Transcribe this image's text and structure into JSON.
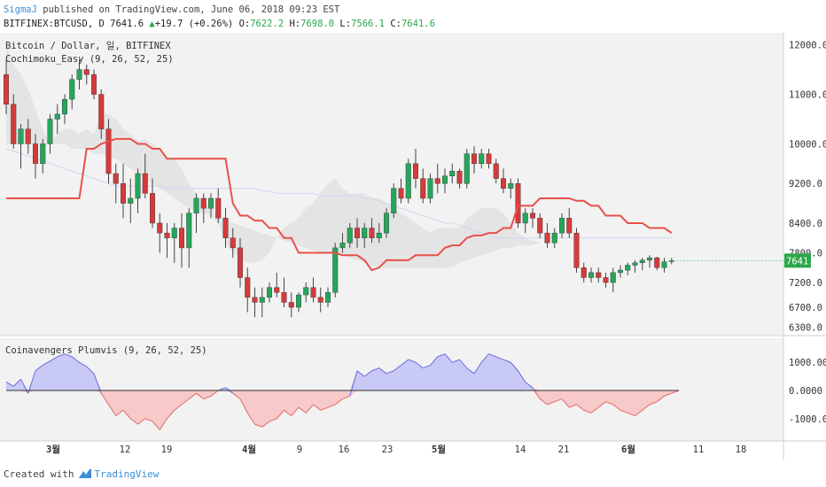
{
  "header": {
    "author": "SigmaJ",
    "published": "published on TradingView.com, June 06, 2018 09:23 EST",
    "symbol": "BITFINEX:BTCUSD, D",
    "last": "7641.6",
    "change": "+19.7 (+0.26%)",
    "o_label": "O:",
    "o": "7622.2",
    "h_label": "H:",
    "h": "7698.0",
    "l_label": "L:",
    "l": "7566.1",
    "c_label": "C:",
    "c": "7641.6"
  },
  "legend": {
    "line1": "Bitcoin / Dollar, 일, BITFINEX",
    "line2": "Cochimoku_Easy (9, 26, 52, 25)",
    "osc": "Coinavengers Plumvis (9, 26, 52, 25)"
  },
  "footer": {
    "created": "Created with",
    "brand": "TradingView"
  },
  "colors": {
    "up": "#26a65b",
    "down": "#d63a3a",
    "kijun": "#e8504a",
    "cloud": "#e4e4e4",
    "span": "#c9d6f0",
    "osc_pos": "#c9c9f5",
    "osc_neg": "#f7c9c9",
    "osc_line_pos": "#6b6be0",
    "osc_line_neg": "#e06b6b",
    "price_tag": "#2aa84a"
  },
  "chart_data": [
    {
      "type": "candlestick",
      "title": "Bitcoin / Dollar, 일, BITFINEX",
      "ylim": [
        6200,
        12100
      ],
      "y_ticks": [
        "12000.0",
        "11000.0",
        "10000.0",
        "9200.0",
        "8400.0",
        "7800.0",
        "7200.0",
        "6700.0",
        "6300.0"
      ],
      "y_tick_values": [
        12000,
        11000,
        10000,
        9200,
        8400,
        7800,
        7200,
        6700,
        6300
      ],
      "last_price": "7641.6",
      "x_tick_labels": [
        "3월",
        "12",
        "19",
        "4월",
        "9",
        "16",
        "23",
        "5월",
        "14",
        "21",
        "6월",
        "11",
        "18"
      ],
      "candles": [
        [
          11400,
          11700,
          10600,
          10800
        ],
        [
          10800,
          11000,
          9900,
          10000
        ],
        [
          10000,
          10400,
          9500,
          10300
        ],
        [
          10300,
          10500,
          9800,
          10000
        ],
        [
          10000,
          10200,
          9300,
          9600
        ],
        [
          9600,
          10100,
          9400,
          10000
        ],
        [
          10000,
          10600,
          9800,
          10500
        ],
        [
          10500,
          10800,
          10200,
          10600
        ],
        [
          10600,
          11000,
          10400,
          10900
        ],
        [
          10900,
          11400,
          10700,
          11300
        ],
        [
          11300,
          11700,
          11100,
          11500
        ],
        [
          11500,
          11600,
          11200,
          11400
        ],
        [
          11400,
          11500,
          10900,
          11000
        ],
        [
          11000,
          11100,
          10100,
          10300
        ],
        [
          10300,
          10500,
          9200,
          9400
        ],
        [
          9400,
          9600,
          8800,
          9200
        ],
        [
          9200,
          9600,
          8500,
          8800
        ],
        [
          8800,
          9300,
          8400,
          8900
        ],
        [
          8900,
          9500,
          8600,
          9400
        ],
        [
          9400,
          9800,
          8900,
          9000
        ],
        [
          9000,
          9300,
          8300,
          8400
        ],
        [
          8400,
          8600,
          7800,
          8200
        ],
        [
          8200,
          8400,
          7700,
          8100
        ],
        [
          8100,
          8400,
          7600,
          8300
        ],
        [
          8300,
          8600,
          7500,
          7900
        ],
        [
          7900,
          8700,
          7500,
          8600
        ],
        [
          8600,
          9000,
          8200,
          8900
        ],
        [
          8900,
          9000,
          8400,
          8700
        ],
        [
          8700,
          9000,
          8500,
          8900
        ],
        [
          8900,
          9100,
          8400,
          8500
        ],
        [
          8500,
          8700,
          7900,
          8100
        ],
        [
          8100,
          8300,
          7700,
          7900
        ],
        [
          7900,
          8100,
          7100,
          7300
        ],
        [
          7300,
          7500,
          6600,
          6900
        ],
        [
          6900,
          7100,
          6500,
          6800
        ],
        [
          6800,
          7100,
          6500,
          6900
        ],
        [
          6900,
          7200,
          6800,
          7100
        ],
        [
          7100,
          7400,
          6900,
          7000
        ],
        [
          7000,
          7300,
          6700,
          6800
        ],
        [
          6800,
          7000,
          6500,
          6700
        ],
        [
          6700,
          7000,
          6600,
          6950
        ],
        [
          6950,
          7200,
          6800,
          7100
        ],
        [
          7100,
          7300,
          6800,
          6900
        ],
        [
          6900,
          7100,
          6600,
          6800
        ],
        [
          6800,
          7100,
          6700,
          7000
        ],
        [
          7000,
          8000,
          6900,
          7900
        ],
        [
          7900,
          8200,
          7800,
          8000
        ],
        [
          8000,
          8400,
          7900,
          8300
        ],
        [
          8300,
          8500,
          7900,
          8100
        ],
        [
          8100,
          8400,
          7900,
          8300
        ],
        [
          8300,
          8500,
          8000,
          8100
        ],
        [
          8100,
          8400,
          8000,
          8200
        ],
        [
          8200,
          8700,
          8100,
          8600
        ],
        [
          8600,
          9200,
          8500,
          9100
        ],
        [
          9100,
          9300,
          8800,
          8900
        ],
        [
          8900,
          9700,
          8800,
          9600
        ],
        [
          9600,
          9900,
          9100,
          9300
        ],
        [
          9300,
          9500,
          8800,
          8900
        ],
        [
          8900,
          9400,
          8800,
          9300
        ],
        [
          9300,
          9600,
          9000,
          9200
        ],
        [
          9200,
          9500,
          9000,
          9350
        ],
        [
          9350,
          9600,
          9200,
          9450
        ],
        [
          9450,
          9500,
          9100,
          9200
        ],
        [
          9200,
          9900,
          9100,
          9800
        ],
        [
          9800,
          9950,
          9400,
          9600
        ],
        [
          9600,
          9900,
          9500,
          9800
        ],
        [
          9800,
          9900,
          9500,
          9600
        ],
        [
          9600,
          9700,
          9200,
          9300
        ],
        [
          9300,
          9500,
          9000,
          9100
        ],
        [
          9100,
          9300,
          8900,
          9200
        ],
        [
          9200,
          9300,
          8300,
          8400
        ],
        [
          8400,
          8700,
          8200,
          8600
        ],
        [
          8600,
          8700,
          8300,
          8500
        ],
        [
          8500,
          8600,
          8100,
          8200
        ],
        [
          8200,
          8400,
          7900,
          8000
        ],
        [
          8000,
          8300,
          7900,
          8200
        ],
        [
          8200,
          8600,
          8100,
          8500
        ],
        [
          8500,
          8700,
          8100,
          8200
        ],
        [
          8200,
          8300,
          7400,
          7500
        ],
        [
          7500,
          7600,
          7200,
          7300
        ],
        [
          7300,
          7500,
          7200,
          7400
        ],
        [
          7400,
          7500,
          7200,
          7300
        ],
        [
          7300,
          7400,
          7100,
          7200
        ],
        [
          7200,
          7500,
          7000,
          7400
        ],
        [
          7400,
          7550,
          7300,
          7450
        ],
        [
          7450,
          7600,
          7350,
          7550
        ],
        [
          7550,
          7650,
          7400,
          7600
        ],
        [
          7600,
          7700,
          7450,
          7650
        ],
        [
          7650,
          7750,
          7500,
          7700
        ],
        [
          7700,
          7720,
          7450,
          7500
        ],
        [
          7500,
          7700,
          7400,
          7620
        ],
        [
          7622,
          7698,
          7566,
          7642
        ]
      ],
      "kijun": [
        8900,
        8900,
        8900,
        8900,
        8900,
        8900,
        8900,
        8900,
        8900,
        8900,
        8900,
        9900,
        9900,
        10000,
        10050,
        10100,
        10100,
        10100,
        10000,
        10000,
        9900,
        9900,
        9700,
        9700,
        9700,
        9700,
        9700,
        9700,
        9700,
        9700,
        9700,
        8800,
        8550,
        8550,
        8450,
        8450,
        8300,
        8300,
        8100,
        8100,
        7800,
        7800,
        7800,
        7800,
        7800,
        7800,
        7750,
        7750,
        7750,
        7650,
        7450,
        7500,
        7650,
        7650,
        7650,
        7650,
        7750,
        7750,
        7750,
        7750,
        7900,
        7950,
        7950,
        8100,
        8150,
        8150,
        8200,
        8200,
        8300,
        8300,
        8750,
        8750,
        8750,
        8900,
        8900,
        8900,
        8900,
        8900,
        8850,
        8850,
        8750,
        8750,
        8550,
        8550,
        8550,
        8400,
        8400,
        8400,
        8300,
        8300,
        8300,
        8200
      ],
      "span_a": [
        12000,
        11600,
        11400,
        11100,
        10700,
        10300,
        10000,
        10200,
        10300,
        10300,
        10200,
        10300,
        10200,
        10600,
        10600,
        10500,
        10300,
        10200,
        10050,
        10100,
        10000,
        9900,
        9700,
        9700,
        9500,
        9200,
        9000,
        8800,
        8800,
        8400,
        8000,
        7800,
        7700,
        7600,
        7600,
        7650,
        7800,
        8100,
        8300,
        8400,
        8500,
        8700,
        8800,
        9000,
        9200,
        9300,
        9100,
        9000,
        9000,
        9000,
        8900,
        8900,
        8800,
        8700,
        8600,
        8500,
        8400,
        8300,
        8200,
        8300,
        8300,
        8300,
        8300,
        8500,
        8600,
        8700,
        8700,
        8700,
        8600,
        8400,
        8200,
        8100,
        8050,
        8000,
        8000,
        8000,
        8000,
        8000,
        8000,
        8000,
        8000,
        8000,
        8000,
        8000,
        8000,
        8000,
        8000,
        8000,
        8000,
        8000,
        8000,
        8000
      ],
      "span_b": [
        10000,
        10000,
        10000,
        10000,
        10000,
        10000,
        10000,
        10000,
        10000,
        9900,
        9900,
        9900,
        9800,
        9800,
        9700,
        9700,
        9600,
        9500,
        9400,
        9300,
        9200,
        9100,
        9000,
        8900,
        8800,
        8700,
        8650,
        8600,
        8550,
        8500,
        8450,
        8400,
        8350,
        8300,
        8250,
        8200,
        8150,
        8100,
        8050,
        8000,
        7950,
        7900,
        7850,
        7800,
        7800,
        7800,
        7750,
        7700,
        7650,
        7600,
        7550,
        7500,
        7500,
        7500,
        7500,
        7500,
        7500,
        7500,
        7500,
        7500,
        7500,
        7500,
        7600,
        7650,
        7700,
        7750,
        7800,
        7850,
        7900,
        7900,
        7950,
        7950,
        7950,
        8000,
        8000,
        8000,
        8000,
        8000,
        8000,
        8000,
        8000,
        8000,
        8000,
        8000,
        8000,
        8000,
        8000,
        8000,
        8000,
        8000,
        8000,
        8000
      ],
      "thin_span": [
        9900,
        9850,
        9800,
        9750,
        9700,
        9650,
        9600,
        9550,
        9500,
        9450,
        9400,
        9350,
        9300,
        9250,
        9200,
        9150,
        9150,
        9150,
        9150,
        9150,
        9150,
        9150,
        9100,
        9100,
        9100,
        9100,
        9100,
        9100,
        9100,
        9100,
        9100,
        9100,
        9100,
        9100,
        9100,
        9050,
        9050,
        9000,
        9000,
        9000,
        9000,
        9000,
        9000,
        8950,
        8950,
        8950,
        8950,
        8950,
        8950,
        8900,
        8900,
        8850,
        8800,
        8750,
        8700,
        8650,
        8600,
        8550,
        8500,
        8450,
        8400,
        8400,
        8350,
        8300,
        8250,
        8200,
        8150,
        8100,
        8100,
        8100,
        8100,
        8100,
        8100,
        8100,
        8100,
        8100,
        8100,
        8100,
        8100,
        8100,
        8100,
        8100,
        8100,
        8100,
        8100,
        8100,
        8100,
        8100,
        8100,
        8100,
        8100,
        8100
      ]
    },
    {
      "type": "area",
      "title": "Coinavengers Plumvis (9, 26, 52, 25)",
      "ylim": [
        -1700,
        1700
      ],
      "y_ticks": [
        "1000.0000",
        "0.0000",
        "-1000.0000"
      ],
      "y_tick_values": [
        1000,
        0,
        -1000
      ],
      "values": [
        300,
        150,
        400,
        -100,
        700,
        900,
        1050,
        1200,
        1300,
        1200,
        1000,
        850,
        600,
        -100,
        -500,
        -900,
        -700,
        -1000,
        -1200,
        -1000,
        -1100,
        -1400,
        -1000,
        -700,
        -500,
        -300,
        -100,
        -300,
        -200,
        0,
        100,
        -100,
        -300,
        -800,
        -1200,
        -1300,
        -1100,
        -1000,
        -700,
        -900,
        -600,
        -800,
        -500,
        -700,
        -600,
        -500,
        -300,
        -200,
        700,
        500,
        700,
        800,
        600,
        700,
        900,
        1100,
        1000,
        800,
        900,
        1200,
        1300,
        1000,
        1100,
        800,
        600,
        1000,
        1300,
        1200,
        1100,
        1000,
        700,
        300,
        100,
        -300,
        -500,
        -400,
        -300,
        -600,
        -500,
        -700,
        -800,
        -600,
        -400,
        -500,
        -700,
        -800,
        -900,
        -700,
        -500,
        -400,
        -200,
        -100,
        0
      ]
    }
  ]
}
